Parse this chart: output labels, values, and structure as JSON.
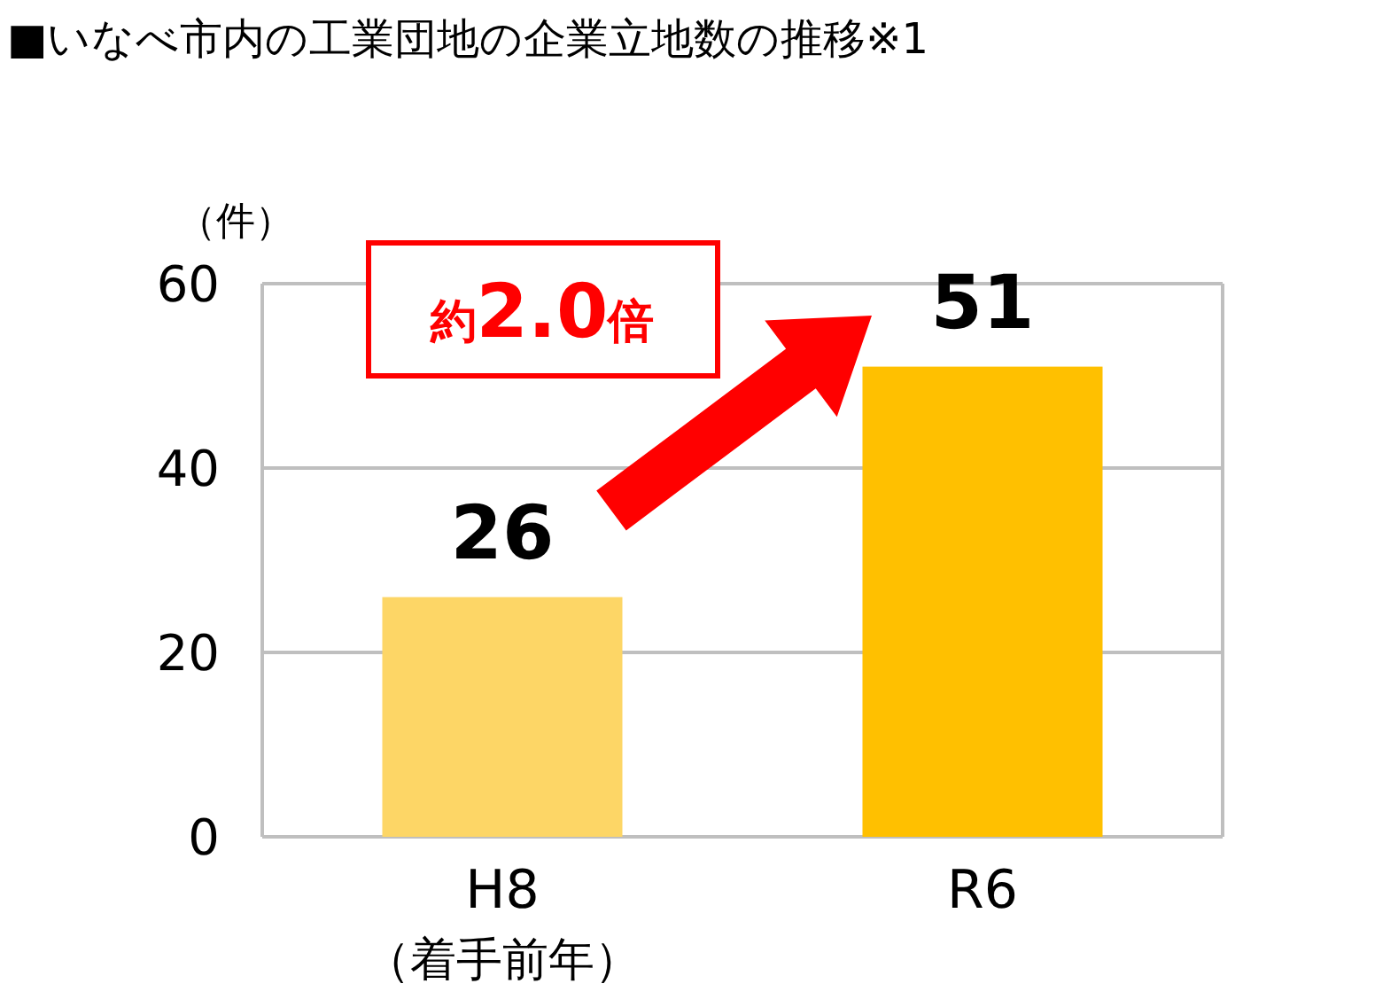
{
  "chart_data": {
    "type": "bar",
    "title": "■いなべ市内の工業団地の企業立地数の推移※1",
    "ylabel": "（件）",
    "categories": [
      "H8\n（着手前年）",
      "R6"
    ],
    "values": [
      26,
      51
    ],
    "colors": [
      "#fdd666",
      "#ffc000"
    ],
    "ylim": [
      0,
      60
    ],
    "yticks": [
      0,
      20,
      40,
      60
    ],
    "grid": "y",
    "data_labels": true,
    "annotations": [
      "約2.0倍"
    ]
  }
}
